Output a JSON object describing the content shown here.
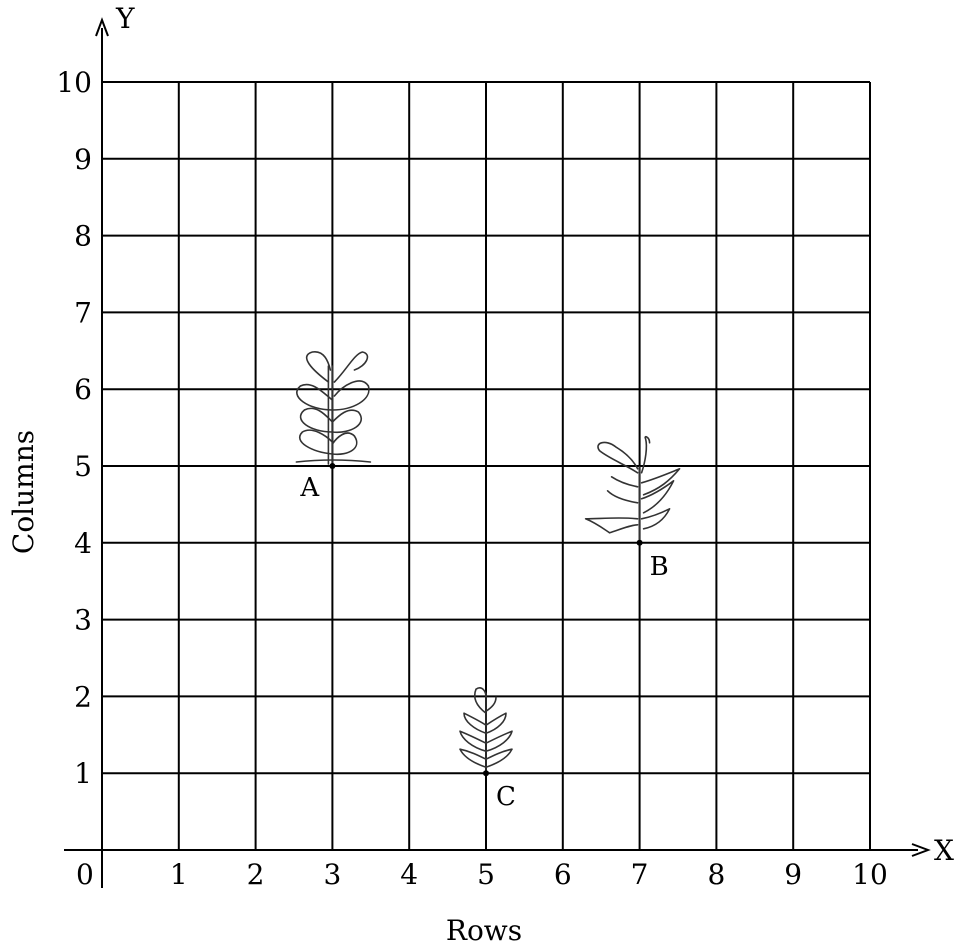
{
  "axes": {
    "origin_label": "0",
    "x_letter": "X",
    "y_letter": "Y",
    "x_title": "Rows",
    "y_title": "Columns",
    "x_ticks": [
      "1",
      "2",
      "3",
      "4",
      "5",
      "6",
      "7",
      "8",
      "9",
      "10"
    ],
    "y_ticks": [
      "1",
      "2",
      "3",
      "4",
      "5",
      "6",
      "7",
      "8",
      "9",
      "10"
    ],
    "x_range": [
      0,
      10
    ],
    "y_range": [
      0,
      10
    ],
    "grid": true
  },
  "plants": [
    {
      "label": "A",
      "x": 3,
      "y": 5,
      "icon": "bushy-plant-icon"
    },
    {
      "label": "B",
      "x": 7,
      "y": 4,
      "icon": "leafy-plant-icon"
    },
    {
      "label": "C",
      "x": 5,
      "y": 1,
      "icon": "small-plant-icon"
    }
  ]
}
